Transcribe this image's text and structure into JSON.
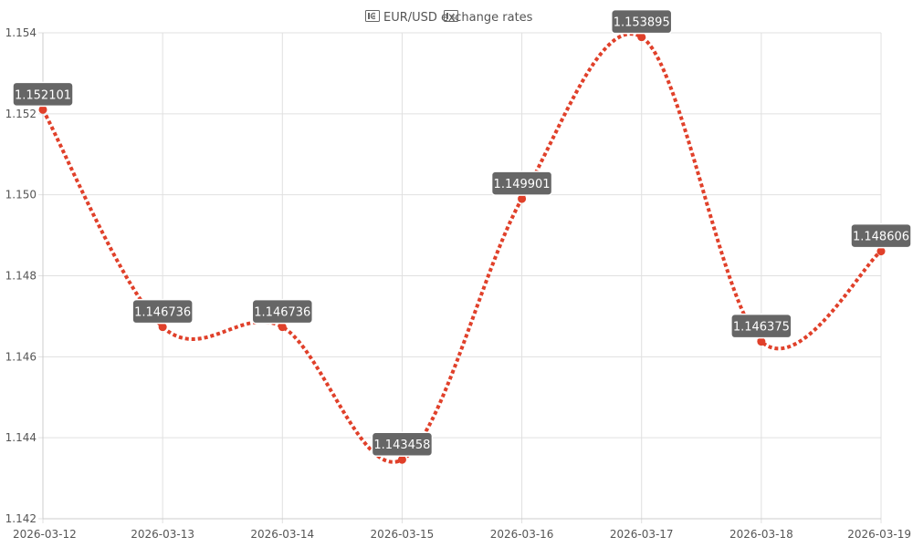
{
  "chart_data": {
    "type": "line",
    "title": "EUR/USD exchange rates",
    "title_icons": [
      "euro-banknote-icon",
      "dollar-banknote-icon"
    ],
    "xlabel": "",
    "ylabel": "",
    "x": [
      "2026-03-12",
      "2026-03-13",
      "2026-03-14",
      "2026-03-15",
      "2026-03-16",
      "2026-03-17",
      "2026-03-18",
      "2026-03-19"
    ],
    "series": [
      {
        "values": [
          1.152101,
          1.146736,
          1.146736,
          1.143458,
          1.149901,
          1.153895,
          1.146375,
          1.148606
        ],
        "labels": [
          "1.152101",
          "1.146736",
          "1.146736",
          "1.143458",
          "1.149901",
          "1.153895",
          "1.146375",
          "1.148606"
        ],
        "color": "#e0402a",
        "line_style": "dotted",
        "smooth": true
      }
    ],
    "ylim": [
      1.142,
      1.154
    ],
    "yticks": [
      "1.142",
      "1.144",
      "1.146",
      "1.148",
      "1.150",
      "1.152",
      "1.154"
    ],
    "ytick_values": [
      1.142,
      1.144,
      1.146,
      1.148,
      1.15,
      1.152,
      1.154
    ],
    "grid": true,
    "legend": "none",
    "label_box_color": "#666666"
  }
}
